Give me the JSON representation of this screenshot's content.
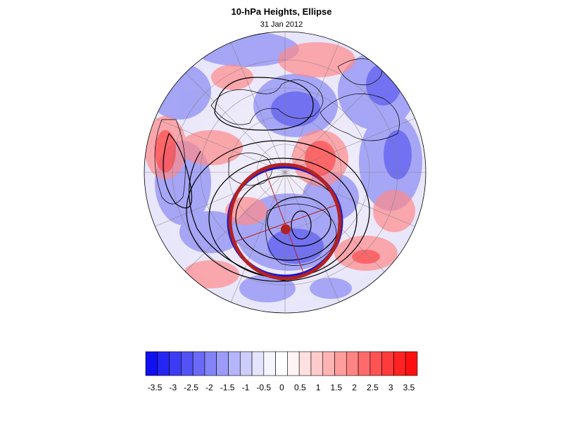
{
  "title": "10-hPa Heights, Ellipse",
  "subtitle": "31 Jan 2012",
  "colorbar": {
    "tick_labels": [
      "-3.5",
      "-3",
      "-2.5",
      "-2",
      "-1.5",
      "-1",
      "-0.5",
      "0",
      "0.5",
      "1",
      "1.5",
      "2",
      "2.5",
      "3",
      "3.5"
    ],
    "colors": [
      "#1010f0",
      "#2626f2",
      "#3c3cf4",
      "#5252f5",
      "#6a6af6",
      "#8383f7",
      "#9c9cf8",
      "#b5b5fa",
      "#cdcdfb",
      "#e4e4fd",
      "#f5f5ff",
      "#ffffff",
      "#fff4f4",
      "#ffe0e0",
      "#ffcbcb",
      "#ffb4b4",
      "#ff9c9c",
      "#ff8484",
      "#ff6b6b",
      "#ff5252",
      "#ff3a3a",
      "#ff2222",
      "#ff1010"
    ]
  },
  "map": {
    "projection": "orthographic polar (northern hemisphere)",
    "ellipse_fit_color": "#b22222",
    "ellipse_observed_color": "#1515d0",
    "contour_color": "#000000"
  }
}
